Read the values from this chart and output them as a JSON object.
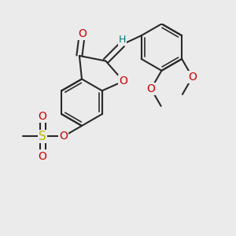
{
  "bg": "#ebebeb",
  "bond_color": "#2a2a2a",
  "lw": 1.5,
  "lw_inner": 1.2,
  "colors": {
    "O": "#cc0000",
    "S": "#bbbb00",
    "H": "#007777"
  },
  "fs": 9,
  "figsize": [
    3.0,
    3.0
  ],
  "dpi": 100
}
